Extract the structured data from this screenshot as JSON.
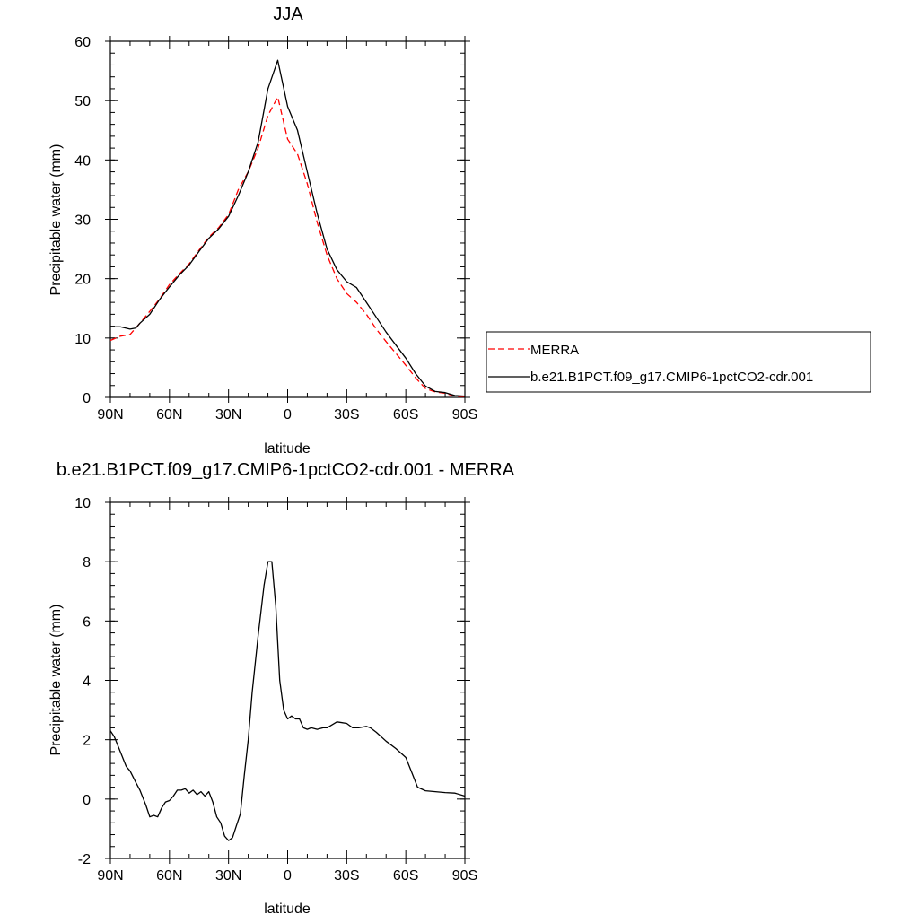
{
  "chart_data": [
    {
      "type": "line",
      "title": "JJA",
      "xlabel": "latitude",
      "ylabel": "Precipitable water (mm)",
      "xlim": [
        90,
        -90
      ],
      "ylim": [
        0,
        60
      ],
      "x_ticks": [
        90,
        60,
        30,
        0,
        -30,
        -60,
        -90
      ],
      "x_tick_labels": [
        "90N",
        "60N",
        "30N",
        "0",
        "30S",
        "60S",
        "90S"
      ],
      "y_ticks": [
        0,
        10,
        20,
        30,
        40,
        50,
        60
      ],
      "y_tick_labels": [
        "0",
        "10",
        "20",
        "30",
        "40",
        "50",
        "60"
      ],
      "grid": false,
      "legend_position": "right",
      "series": [
        {
          "name": "MERRA",
          "color": "#ff0000",
          "dash": "dashed",
          "x": [
            90,
            85,
            80,
            75,
            70,
            65,
            60,
            55,
            50,
            45,
            40,
            35,
            30,
            25,
            20,
            15,
            10,
            5,
            0,
            -5,
            -10,
            -15,
            -20,
            -25,
            -30,
            -35,
            -40,
            -45,
            -50,
            -55,
            -60,
            -65,
            -70,
            -75,
            -80,
            -85,
            -90
          ],
          "y": [
            9.6,
            10.3,
            10.6,
            12.5,
            14.5,
            16.6,
            19.0,
            20.8,
            22.5,
            24.8,
            27.0,
            28.6,
            30.8,
            35.0,
            38.0,
            42.0,
            47.5,
            50.6,
            43.5,
            41.0,
            36.0,
            29.5,
            24.0,
            20.0,
            17.5,
            16.0,
            14.0,
            11.5,
            9.4,
            7.4,
            5.4,
            3.3,
            1.5,
            0.9,
            0.7,
            0.2,
            0.1
          ]
        },
        {
          "name": "b.e21.B1PCT.f09_g17.CMIP6-1pctCO2-cdr.001",
          "color": "#000000",
          "dash": "solid",
          "x": [
            90,
            85,
            80,
            77,
            75,
            70,
            65,
            60,
            55,
            50,
            45,
            40,
            35,
            30,
            25,
            20,
            15,
            10,
            5,
            0,
            -5,
            -10,
            -15,
            -20,
            -25,
            -30,
            -35,
            -40,
            -45,
            -50,
            -55,
            -60,
            -65,
            -70,
            -75,
            -80,
            -85,
            -90
          ],
          "y": [
            11.9,
            11.9,
            11.5,
            11.7,
            12.5,
            14.0,
            16.5,
            18.6,
            20.6,
            22.3,
            24.6,
            26.8,
            28.4,
            30.5,
            34.0,
            38.0,
            43.0,
            52.0,
            56.8,
            49.0,
            45.0,
            38.0,
            31.0,
            25.0,
            21.5,
            19.5,
            18.5,
            16.0,
            13.5,
            11.0,
            8.8,
            6.6,
            4.0,
            1.9,
            1.0,
            0.8,
            0.3,
            0.2
          ]
        }
      ]
    },
    {
      "type": "line",
      "title": "b.e21.B1PCT.f09_g17.CMIP6-1pctCO2-cdr.001 - MERRA",
      "xlabel": "latitude",
      "ylabel": "Precipitable water (mm)",
      "xlim": [
        90,
        -90
      ],
      "ylim": [
        -2,
        10
      ],
      "x_ticks": [
        90,
        60,
        30,
        0,
        -30,
        -60,
        -90
      ],
      "x_tick_labels": [
        "90N",
        "60N",
        "30N",
        "0",
        "30S",
        "60S",
        "90S"
      ],
      "y_ticks": [
        -2,
        0,
        2,
        4,
        6,
        8,
        10
      ],
      "y_tick_labels": [
        "-2",
        "0",
        "2",
        "4",
        "6",
        "8",
        "10"
      ],
      "grid": false,
      "series": [
        {
          "color": "#000000",
          "dash": "solid",
          "x": [
            90,
            88,
            85,
            82,
            80,
            77,
            75,
            72,
            70,
            68,
            66,
            64,
            62,
            60,
            58,
            56,
            54,
            52,
            50,
            48,
            46,
            44,
            42,
            40,
            38,
            36,
            34,
            32,
            30,
            28,
            26,
            24,
            22,
            20,
            18,
            15,
            12,
            10,
            8,
            6,
            4,
            2,
            0,
            -2,
            -4,
            -6,
            -8,
            -10,
            -12,
            -15,
            -18,
            -20,
            -25,
            -30,
            -33,
            -36,
            -40,
            -42,
            -45,
            -50,
            -55,
            -60,
            -63,
            -66,
            -70,
            -75,
            -80,
            -85,
            -90
          ],
          "y": [
            2.3,
            2.1,
            1.6,
            1.1,
            0.95,
            0.55,
            0.3,
            -0.2,
            -0.6,
            -0.55,
            -0.6,
            -0.3,
            -0.1,
            -0.05,
            0.1,
            0.3,
            0.3,
            0.35,
            0.2,
            0.3,
            0.15,
            0.25,
            0.1,
            0.25,
            -0.1,
            -0.6,
            -0.8,
            -1.25,
            -1.4,
            -1.3,
            -0.9,
            -0.5,
            0.8,
            2.0,
            3.6,
            5.5,
            7.2,
            8.0,
            8.0,
            6.5,
            4.0,
            3.0,
            2.7,
            2.8,
            2.7,
            2.7,
            2.4,
            2.35,
            2.4,
            2.35,
            2.4,
            2.4,
            2.6,
            2.55,
            2.4,
            2.4,
            2.45,
            2.4,
            2.25,
            1.95,
            1.7,
            1.4,
            0.9,
            0.4,
            0.28,
            0.25,
            0.22,
            0.2,
            0.1
          ]
        }
      ]
    }
  ]
}
